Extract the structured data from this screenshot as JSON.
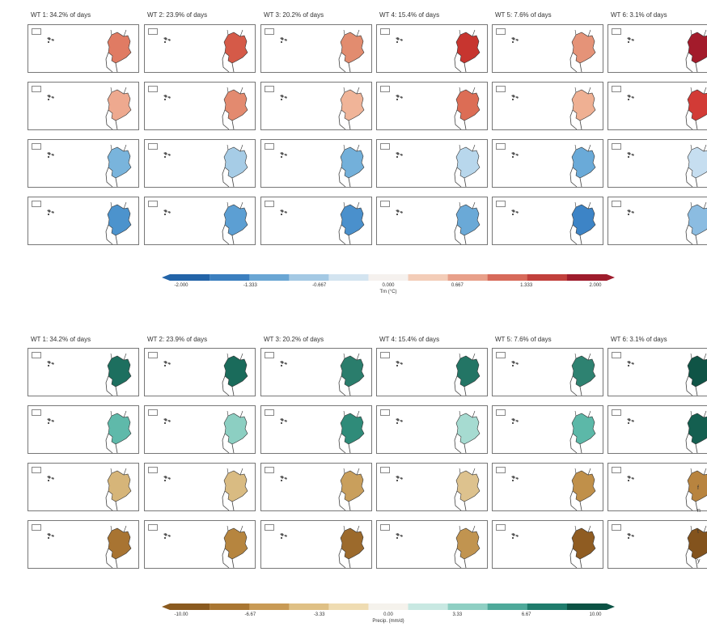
{
  "figures": [
    {
      "id": "temperature",
      "column_titles": [
        "WT 1: 34.2% of days",
        "WT 2: 23.9% of days",
        "WT 3: 20.2% of days",
        "WT 4: 15.4% of days",
        "WT 5: 7.6% of days",
        "WT 6: 3.1% of days"
      ],
      "row_fill_colors": [
        [
          "#e07b63",
          "#d55a48",
          "#e28c6f",
          "#c7352f",
          "#e59378",
          "#a31b2b"
        ],
        [
          "#eea98f",
          "#e38a6f",
          "#f0b498",
          "#dc6d55",
          "#efb093",
          "#d23b36"
        ],
        [
          "#79b4dc",
          "#a6cce6",
          "#73b0da",
          "#b8d7ec",
          "#6aaad8",
          "#c6def0"
        ],
        [
          "#4c93cd",
          "#5c9fd3",
          "#4a90cc",
          "#6aa9d7",
          "#3d84c6",
          "#8bbce1"
        ]
      ],
      "colorbar": {
        "tick_labels": [
          "-2.000",
          "-1.333",
          "-0.667",
          "0.000",
          "0.667",
          "1.333",
          "2.000"
        ],
        "label": "Tm (°C)",
        "colors": [
          "#2364a8",
          "#3b7fbf",
          "#6aa6d4",
          "#a4c9e4",
          "#d3e4f0",
          "#f5f1ee",
          "#f3cdb8",
          "#e8a08a",
          "#d76a5a",
          "#c1403c",
          "#9e1c2c"
        ]
      }
    },
    {
      "id": "precipitation",
      "column_titles": [
        "WT 1: 34.2% of days",
        "WT 2: 23.9% of days",
        "WT 3: 20.2% of days",
        "WT 4: 15.4% of days",
        "WT 5: 7.6% of days",
        "WT 6: 3.1% of days"
      ],
      "row_fill_colors": [
        [
          "#1d6f5f",
          "#1a6b5b",
          "#2a7d6c",
          "#237565",
          "#2e8271",
          "#0f5446"
        ],
        [
          "#5fb9aa",
          "#8ccfc2",
          "#2f8b79",
          "#a6dbd1",
          "#5cb8a8",
          "#145f50"
        ],
        [
          "#d6b579",
          "#d9bb82",
          "#c99f5c",
          "#ddc28e",
          "#c0904a",
          "#b8843f"
        ],
        [
          "#a87432",
          "#b6853f",
          "#9c6a2c",
          "#c19450",
          "#8f5c22",
          "#83531d"
        ]
      ],
      "colorbar": {
        "tick_labels": [
          "-10.00",
          "-6.67",
          "-3.33",
          "0.00",
          "3.33",
          "6.67",
          "10.00"
        ],
        "label": "Precip. (mm/d)",
        "colors": [
          "#8a5a1f",
          "#a97632",
          "#c89a55",
          "#dfc085",
          "#efdcb2",
          "#f5f2ec",
          "#c8e8e2",
          "#8fcfc3",
          "#4ea99a",
          "#1f7c6c",
          "#0b5244"
        ]
      }
    }
  ],
  "side_marks": [
    "f",
    "n",
    "t",
    "y"
  ]
}
